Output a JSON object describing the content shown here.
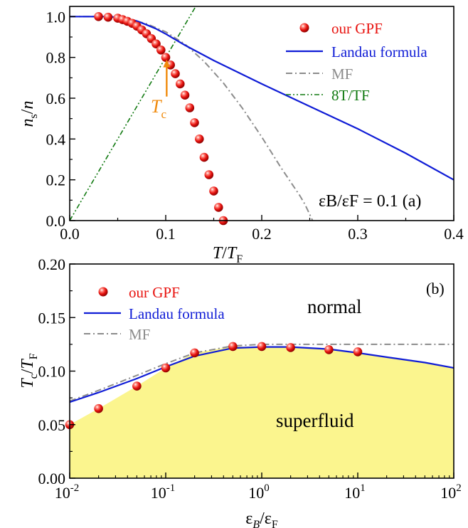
{
  "chart_data": [
    {
      "type": "line",
      "panel": "(a)",
      "xlabel": "T/T_F",
      "ylabel": "n_s/n",
      "xlim": [
        0.0,
        0.4
      ],
      "ylim": [
        0.0,
        1.05
      ],
      "x_ticks": [
        "0.0",
        "0.1",
        "0.2",
        "0.3",
        "0.4"
      ],
      "y_ticks": [
        "0.0",
        "0.2",
        "0.4",
        "0.6",
        "0.8",
        "1.0"
      ],
      "annotation": "εB/εF = 0.1 (a)",
      "tc_label": "T",
      "tc_sub": "c",
      "tc_marker": {
        "x": 0.101,
        "y": 0.8
      },
      "legend": {
        "placement": "top-right",
        "entries": [
          "our GPF",
          "Landau formula",
          "MF",
          "8T/TF"
        ]
      },
      "series": [
        {
          "name": "our GPF",
          "style": "red-spheres",
          "color": "#e8130f",
          "x": [
            0.03,
            0.04,
            0.05,
            0.055,
            0.06,
            0.065,
            0.07,
            0.075,
            0.08,
            0.085,
            0.09,
            0.095,
            0.1,
            0.105,
            0.11,
            0.115,
            0.12,
            0.125,
            0.13,
            0.135,
            0.14,
            0.145,
            0.15,
            0.155,
            0.16
          ],
          "y": [
            1.0,
            0.997,
            0.992,
            0.985,
            0.977,
            0.967,
            0.953,
            0.935,
            0.916,
            0.892,
            0.866,
            0.836,
            0.8,
            0.763,
            0.72,
            0.67,
            0.615,
            0.553,
            0.48,
            0.4,
            0.31,
            0.225,
            0.145,
            0.065,
            0.0
          ]
        },
        {
          "name": "Landau formula",
          "style": "solid",
          "color": "#0f1cd6",
          "x": [
            0.0,
            0.04,
            0.05,
            0.06,
            0.07,
            0.08,
            0.09,
            0.1,
            0.12,
            0.15,
            0.2,
            0.25,
            0.3,
            0.35,
            0.4
          ],
          "y": [
            1.0,
            1.0,
            0.997,
            0.99,
            0.978,
            0.96,
            0.94,
            0.915,
            0.86,
            0.785,
            0.67,
            0.56,
            0.45,
            0.33,
            0.2
          ]
        },
        {
          "name": "MF",
          "style": "dash-dot",
          "color": "#8c8c8c",
          "x": [
            0.0,
            0.04,
            0.06,
            0.08,
            0.1,
            0.12,
            0.14,
            0.16,
            0.18,
            0.2,
            0.22,
            0.24,
            0.245,
            0.25,
            0.253
          ],
          "y": [
            1.0,
            1.0,
            0.99,
            0.965,
            0.925,
            0.865,
            0.78,
            0.675,
            0.55,
            0.41,
            0.26,
            0.12,
            0.08,
            0.03,
            0.0
          ]
        },
        {
          "name": "8T/TF",
          "style": "dash-dot-dot",
          "color": "#117a11",
          "x": [
            0.0,
            0.13125
          ],
          "y": [
            0.0,
            1.05
          ]
        }
      ]
    },
    {
      "type": "line",
      "panel": "(b)",
      "xlabel": "εB/εF",
      "ylabel": "Tc/TF",
      "xscale": "log",
      "xlim": [
        0.01,
        100
      ],
      "ylim": [
        0.0,
        0.2
      ],
      "x_ticks": [
        {
          "v": 0.01,
          "base": "10",
          "exp": "-2"
        },
        {
          "v": 0.1,
          "base": "10",
          "exp": "-1"
        },
        {
          "v": 1,
          "base": "10",
          "exp": "0"
        },
        {
          "v": 10,
          "base": "10",
          "exp": "1"
        },
        {
          "v": 100,
          "base": "10",
          "exp": "2"
        }
      ],
      "y_ticks": [
        "0.00",
        "0.05",
        "0.10",
        "0.15",
        "0.20"
      ],
      "annotation": "(b)",
      "region_labels": [
        "normal",
        "superfluid"
      ],
      "fill_color": "#fbf58e",
      "legend": {
        "placement": "top-left",
        "entries": [
          "our GPF",
          "Landau formula",
          "MF"
        ]
      },
      "series": [
        {
          "name": "our GPF",
          "style": "red-spheres",
          "color": "#e8130f",
          "x": [
            0.01,
            0.02,
            0.05,
            0.1,
            0.2,
            0.5,
            1,
            2,
            5,
            10
          ],
          "y": [
            0.05,
            0.065,
            0.086,
            0.103,
            0.117,
            0.123,
            0.123,
            0.122,
            0.12,
            0.118
          ]
        },
        {
          "name": "Landau formula",
          "style": "solid",
          "color": "#0f1cd6",
          "x": [
            0.01,
            0.02,
            0.05,
            0.1,
            0.2,
            0.5,
            1,
            2,
            5,
            10,
            20,
            50,
            100
          ],
          "y": [
            0.071,
            0.08,
            0.093,
            0.104,
            0.114,
            0.1215,
            0.1225,
            0.1225,
            0.1205,
            0.117,
            0.113,
            0.108,
            0.103
          ]
        },
        {
          "name": "MF",
          "style": "dash-dot",
          "color": "#8c8c8c",
          "x": [
            0.01,
            0.02,
            0.05,
            0.1,
            0.2,
            0.5,
            1,
            2,
            5,
            10,
            20,
            50,
            100
          ],
          "y": [
            0.072,
            0.082,
            0.096,
            0.107,
            0.117,
            0.1235,
            0.125,
            0.125,
            0.125,
            0.125,
            0.125,
            0.125,
            0.125
          ]
        }
      ]
    }
  ]
}
